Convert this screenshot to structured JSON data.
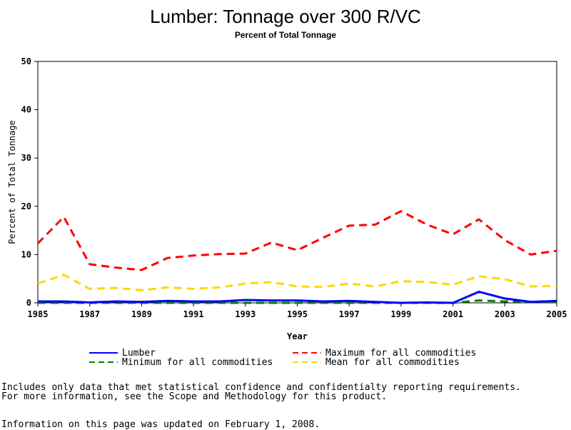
{
  "chart_data": {
    "type": "line",
    "title": "Lumber: Tonnage over 300 R/VC",
    "subtitle": "Percent of Total Tonnage",
    "xlabel": "Year",
    "ylabel": "Percent of Total Tonnage",
    "xlim": [
      1985,
      2005
    ],
    "ylim": [
      0,
      50
    ],
    "x_ticks": [
      "1985",
      "1987",
      "1989",
      "1991",
      "1993",
      "1995",
      "1997",
      "1999",
      "2001",
      "2003",
      "2005"
    ],
    "y_ticks": [
      "0",
      "10",
      "20",
      "30",
      "40",
      "50"
    ],
    "grid": false,
    "legend_position": "bottom",
    "x": [
      1985,
      1986,
      1987,
      1988,
      1989,
      1990,
      1991,
      1992,
      1993,
      1994,
      1995,
      1996,
      1997,
      1998,
      1999,
      2000,
      2001,
      2002,
      2003,
      2004,
      2005
    ],
    "series": [
      {
        "name": "Lumber",
        "color": "#0000ff",
        "dash": "solid",
        "width": 3,
        "values": [
          0.3,
          0.3,
          0.1,
          0.3,
          0.2,
          0.4,
          0.3,
          0.3,
          0.6,
          0.5,
          0.5,
          0.3,
          0.4,
          0.2,
          0.0,
          0.1,
          0.0,
          2.3,
          0.9,
          0.2,
          0.4
        ]
      },
      {
        "name": "Maximum for all commodities",
        "color": "#ff0000",
        "dash": "dashed",
        "width": 3,
        "values": [
          12.3,
          17.8,
          8.0,
          7.3,
          6.8,
          9.3,
          9.8,
          10.1,
          10.2,
          12.5,
          10.9,
          13.5,
          16.0,
          16.2,
          19.0,
          16.2,
          14.2,
          17.3,
          13.0,
          10.0,
          10.8
        ]
      },
      {
        "name": "Minimum for all commodities",
        "color": "#008000",
        "dash": "dashed",
        "width": 3,
        "values": [
          0.0,
          0.0,
          0.0,
          0.0,
          0.0,
          0.0,
          0.0,
          0.0,
          0.0,
          0.0,
          0.0,
          0.0,
          0.0,
          0.0,
          0.0,
          0.0,
          0.0,
          0.5,
          0.3,
          0.2,
          0.2
        ]
      },
      {
        "name": "Mean for all commodities",
        "color": "#ffd700",
        "dash": "dashed",
        "width": 3,
        "values": [
          4.0,
          5.8,
          2.9,
          3.1,
          2.6,
          3.2,
          2.9,
          3.2,
          4.0,
          4.3,
          3.4,
          3.3,
          4.0,
          3.4,
          4.5,
          4.3,
          3.8,
          5.5,
          4.9,
          3.4,
          3.5
        ]
      }
    ]
  },
  "footnotes": {
    "line1": "Includes only data that met statistical confidence and confidentialty reporting requirements.",
    "line2": "For more information, see the Scope and Methodology for this product.",
    "line3": "Information on this page was updated on February 1, 2008."
  }
}
